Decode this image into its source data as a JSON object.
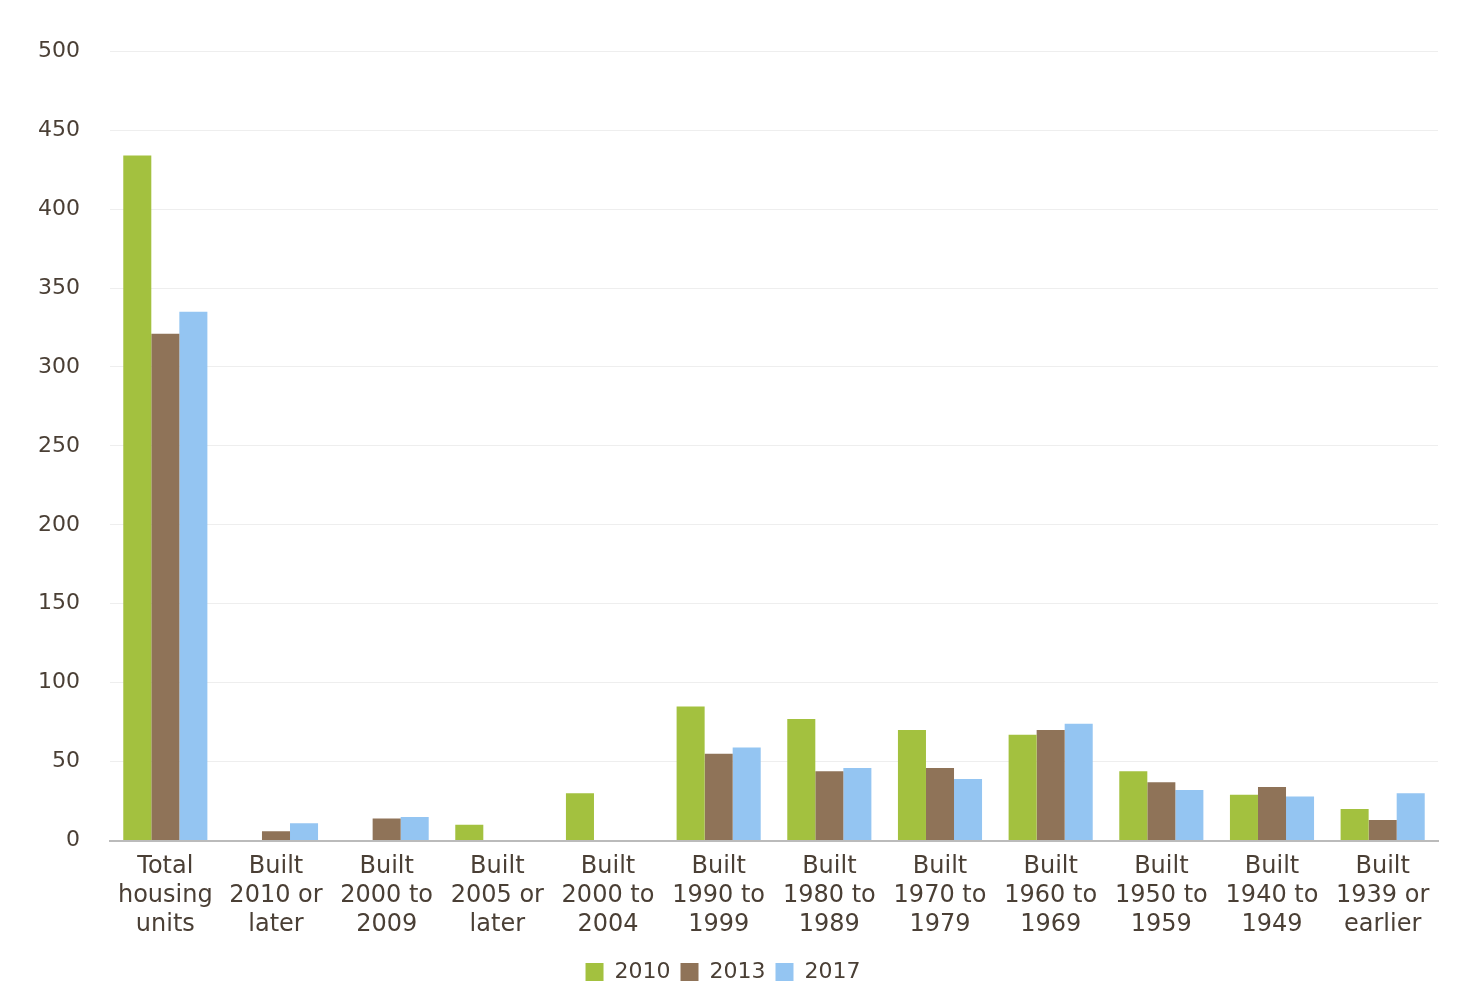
{
  "chart_data": {
    "type": "bar",
    "categories": [
      "Total housing units",
      "Built 2010 or later",
      "Built 2000 to 2009",
      "Built 2005 or later",
      "Built 2000 to 2004",
      "Built 1990 to 1999",
      "Built 1980 to 1989",
      "Built 1970 to 1979",
      "Built 1960 to 1969",
      "Built 1950 to 1959",
      "Built 1940 to 1949",
      "Built 1939 or earlier"
    ],
    "series": [
      {
        "name": "2010",
        "color": "#a3c13f",
        "values": [
          434,
          null,
          null,
          10,
          30,
          85,
          77,
          70,
          67,
          44,
          29,
          20
        ]
      },
      {
        "name": "2013",
        "color": "#8f7358",
        "values": [
          321,
          6,
          14,
          null,
          null,
          55,
          44,
          46,
          70,
          37,
          34,
          13
        ]
      },
      {
        "name": "2017",
        "color": "#94c5f2",
        "values": [
          335,
          11,
          15,
          null,
          null,
          59,
          46,
          39,
          74,
          32,
          28,
          30
        ]
      }
    ],
    "ylim": [
      0,
      500
    ],
    "yticks": [
      0,
      50,
      100,
      150,
      200,
      250,
      300,
      350,
      400,
      450,
      500
    ],
    "grid": "y",
    "legend": "bottom"
  }
}
